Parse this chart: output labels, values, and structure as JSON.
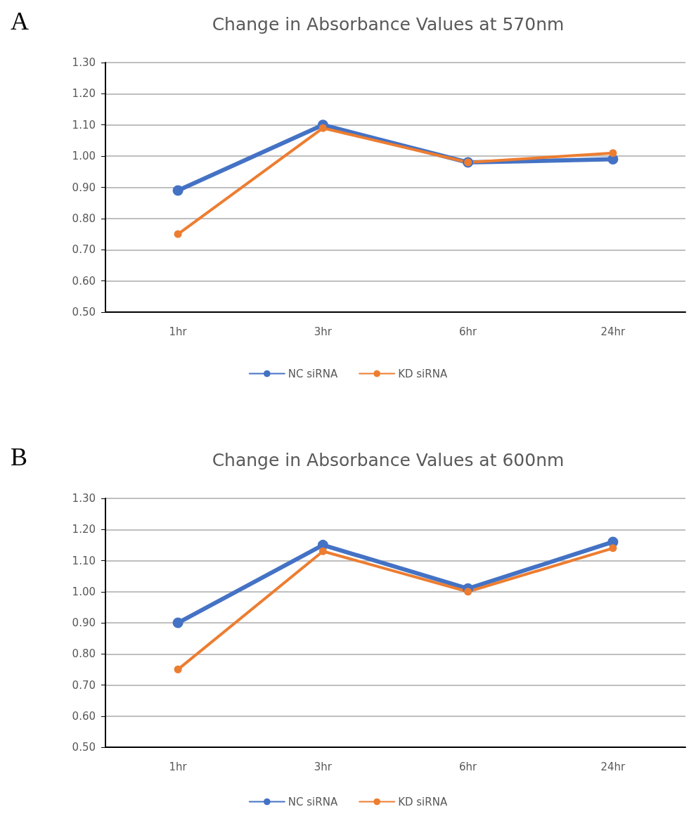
{
  "chart_data": [
    {
      "type": "line",
      "title": "Change in Absorbance Values at 570nm",
      "annotations": [
        "A"
      ],
      "categories": [
        "1hr",
        "3hr",
        "6hr",
        "24hr"
      ],
      "series": [
        {
          "name": "NC siRNA",
          "color": "#4472c4",
          "values": [
            0.89,
            1.1,
            0.98,
            0.99
          ]
        },
        {
          "name": "KD siRNA",
          "color": "#ed7d31",
          "values": [
            0.75,
            1.09,
            0.98,
            1.01
          ]
        }
      ],
      "ylim": [
        0.5,
        1.3
      ],
      "yticks": [
        {
          "value": 0.5,
          "label": "0.50"
        },
        {
          "value": 0.6,
          "label": "0.60"
        },
        {
          "value": 0.7,
          "label": "0.70"
        },
        {
          "value": 0.8,
          "label": "0.80"
        },
        {
          "value": 0.9,
          "label": "0.90"
        },
        {
          "value": 1.0,
          "label": "1.00"
        },
        {
          "value": 1.1,
          "label": "1.10"
        },
        {
          "value": 1.2,
          "label": "1.20"
        },
        {
          "value": 1.3,
          "label": "1.30"
        }
      ],
      "grid": "y",
      "legend": "bottom",
      "marker": "circle",
      "line_style": "solid"
    },
    {
      "type": "line",
      "title": "Change in Absorbance Values at 600nm",
      "annotations": [
        "B"
      ],
      "categories": [
        "1hr",
        "3hr",
        "6hr",
        "24hr"
      ],
      "series": [
        {
          "name": "NC siRNA",
          "color": "#4472c4",
          "values": [
            0.9,
            1.15,
            1.01,
            1.16
          ]
        },
        {
          "name": "KD siRNA",
          "color": "#ed7d31",
          "values": [
            0.75,
            1.13,
            1.0,
            1.14
          ]
        }
      ],
      "ylim": [
        0.5,
        1.3
      ],
      "yticks": [
        {
          "value": 0.5,
          "label": "0.50"
        },
        {
          "value": 0.6,
          "label": "0.60"
        },
        {
          "value": 0.7,
          "label": "0.70"
        },
        {
          "value": 0.8,
          "label": "0.80"
        },
        {
          "value": 0.9,
          "label": "0.90"
        },
        {
          "value": 1.0,
          "label": "1.00"
        },
        {
          "value": 1.1,
          "label": "1.10"
        },
        {
          "value": 1.2,
          "label": "1.20"
        },
        {
          "value": 1.3,
          "label": "1.30"
        }
      ],
      "grid": "y",
      "legend": "bottom",
      "marker": "circle",
      "line_style": "solid"
    }
  ]
}
